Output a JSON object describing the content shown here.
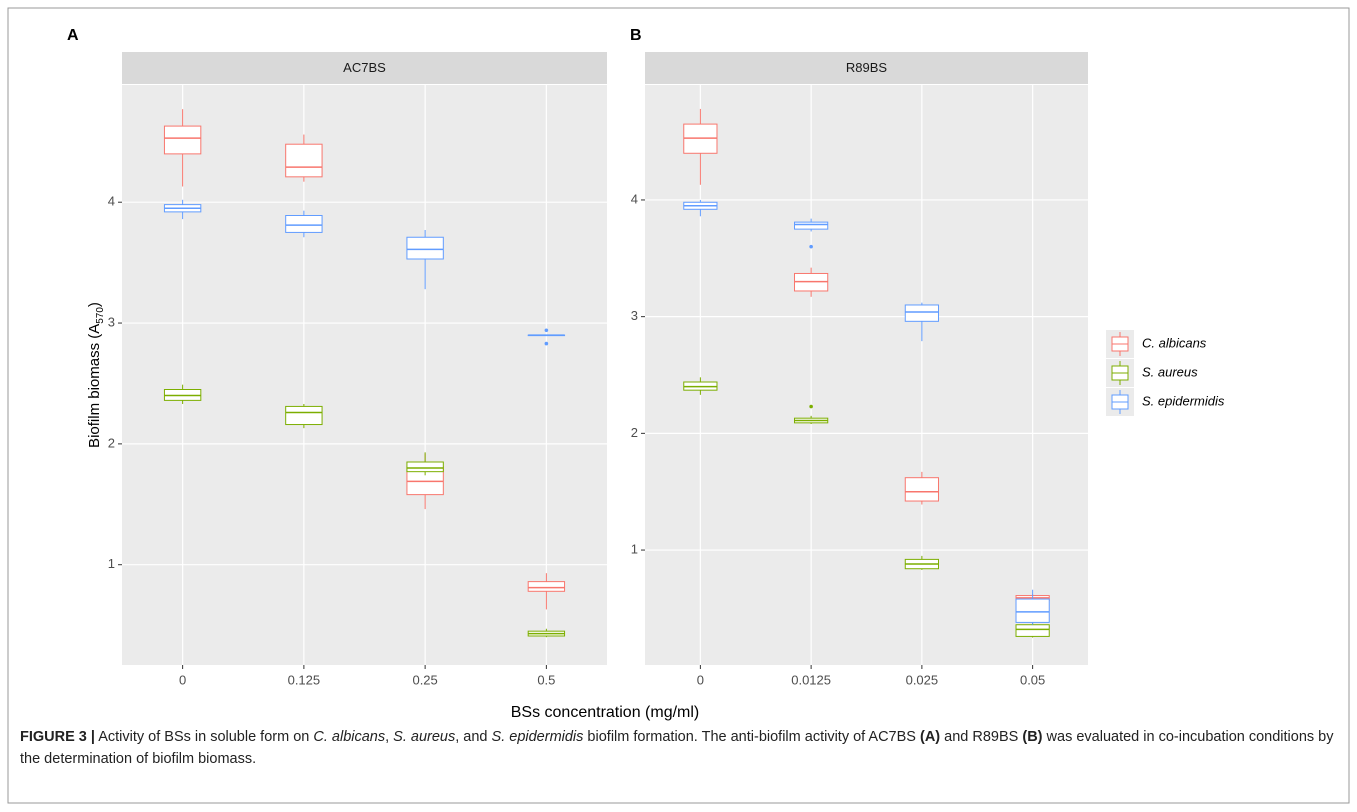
{
  "chart_data": [
    {
      "type": "box",
      "panel": "A",
      "title": "AC7BS",
      "categories": [
        "0",
        "0.125",
        "0.25",
        "0.5"
      ],
      "ylim": [
        0.17,
        4.97
      ],
      "yticks": [
        1,
        2,
        3,
        4
      ],
      "grid": true,
      "series": [
        {
          "name": "C. albicans",
          "color": "#F8766D",
          "min": [
            4.13,
            4.17,
            1.46,
            0.63
          ],
          "q1": [
            4.4,
            4.21,
            1.58,
            0.78
          ],
          "median": [
            4.53,
            4.29,
            1.69,
            0.81
          ],
          "q3": [
            4.63,
            4.48,
            1.81,
            0.86
          ],
          "max": [
            4.77,
            4.56,
            1.92,
            0.93
          ],
          "outliers": [
            [],
            [],
            [],
            []
          ]
        },
        {
          "name": "S. aureus",
          "color": "#7CAE00",
          "min": [
            2.33,
            2.13,
            1.74,
            0.4
          ],
          "q1": [
            2.36,
            2.16,
            1.77,
            0.41
          ],
          "median": [
            2.4,
            2.26,
            1.8,
            0.43
          ],
          "q3": [
            2.45,
            2.31,
            1.85,
            0.45
          ],
          "max": [
            2.49,
            2.33,
            1.93,
            0.47
          ],
          "outliers": [
            [],
            [],
            [],
            []
          ]
        },
        {
          "name": "S. epidermidis",
          "color": "#619CFF",
          "min": [
            3.86,
            3.71,
            3.28,
            2.9
          ],
          "q1": [
            3.92,
            3.75,
            3.53,
            2.9
          ],
          "median": [
            3.95,
            3.81,
            3.61,
            2.9
          ],
          "q3": [
            3.98,
            3.89,
            3.71,
            2.9
          ],
          "max": [
            4.02,
            3.93,
            3.77,
            2.9
          ],
          "outliers": [
            [],
            [],
            [],
            [
              2.94,
              2.83
            ]
          ]
        }
      ]
    },
    {
      "type": "box",
      "panel": "B",
      "title": "R89BS",
      "categories": [
        "0",
        "0.0125",
        "0.025",
        "0.05"
      ],
      "ylim": [
        0.015,
        4.985
      ],
      "yticks": [
        1,
        2,
        3,
        4
      ],
      "grid": true,
      "series": [
        {
          "name": "C. albicans",
          "color": "#F8766D",
          "min": [
            4.13,
            3.17,
            1.39,
            0.56
          ],
          "q1": [
            4.4,
            3.22,
            1.42,
            0.57
          ],
          "median": [
            4.53,
            3.3,
            1.5,
            0.59
          ],
          "q3": [
            4.65,
            3.37,
            1.62,
            0.61
          ],
          "max": [
            4.78,
            3.42,
            1.67,
            0.62
          ],
          "outliers": [
            [],
            [],
            [],
            []
          ]
        },
        {
          "name": "S. aureus",
          "color": "#7CAE00",
          "min": [
            2.33,
            2.08,
            0.83,
            0.25
          ],
          "q1": [
            2.37,
            2.09,
            0.84,
            0.26
          ],
          "median": [
            2.4,
            2.11,
            0.88,
            0.32
          ],
          "q3": [
            2.44,
            2.13,
            0.92,
            0.36
          ],
          "max": [
            2.48,
            2.15,
            0.95,
            0.38
          ],
          "outliers": [
            [],
            [
              2.23
            ],
            [],
            []
          ]
        },
        {
          "name": "S. epidermidis",
          "color": "#619CFF",
          "min": [
            3.86,
            3.73,
            2.79,
            0.36
          ],
          "q1": [
            3.92,
            3.75,
            2.96,
            0.38
          ],
          "median": [
            3.95,
            3.79,
            3.04,
            0.47
          ],
          "q3": [
            3.98,
            3.81,
            3.1,
            0.58
          ],
          "max": [
            4.0,
            3.84,
            3.12,
            0.66
          ],
          "outliers": [
            [],
            [
              3.6
            ],
            [],
            []
          ]
        }
      ]
    }
  ],
  "y_label": {
    "text": "Biofilm biomass (A",
    "sub": "570",
    "close": ")"
  },
  "x_label": "BSs concentration (mg/ml)",
  "caption": {
    "label": "FIGURE 3 |",
    "runs": [
      {
        "text": " Activity of BSs in soluble form on ",
        "style": "n"
      },
      {
        "text": "C. albicans",
        "style": "i"
      },
      {
        "text": ", ",
        "style": "n"
      },
      {
        "text": "S. aureus",
        "style": "i"
      },
      {
        "text": ", and ",
        "style": "n"
      },
      {
        "text": "S. epidermidis",
        "style": "i"
      },
      {
        "text": " biofilm formation. The anti-biofilm activity of AC7BS ",
        "style": "n"
      },
      {
        "text": "(A)",
        "style": "b"
      },
      {
        "text": " and R89BS ",
        "style": "n"
      },
      {
        "text": "(B)",
        "style": "b"
      },
      {
        "text": " was evaluated in co-incubation conditions by the determination of biofilm biomass.",
        "style": "n"
      }
    ]
  }
}
